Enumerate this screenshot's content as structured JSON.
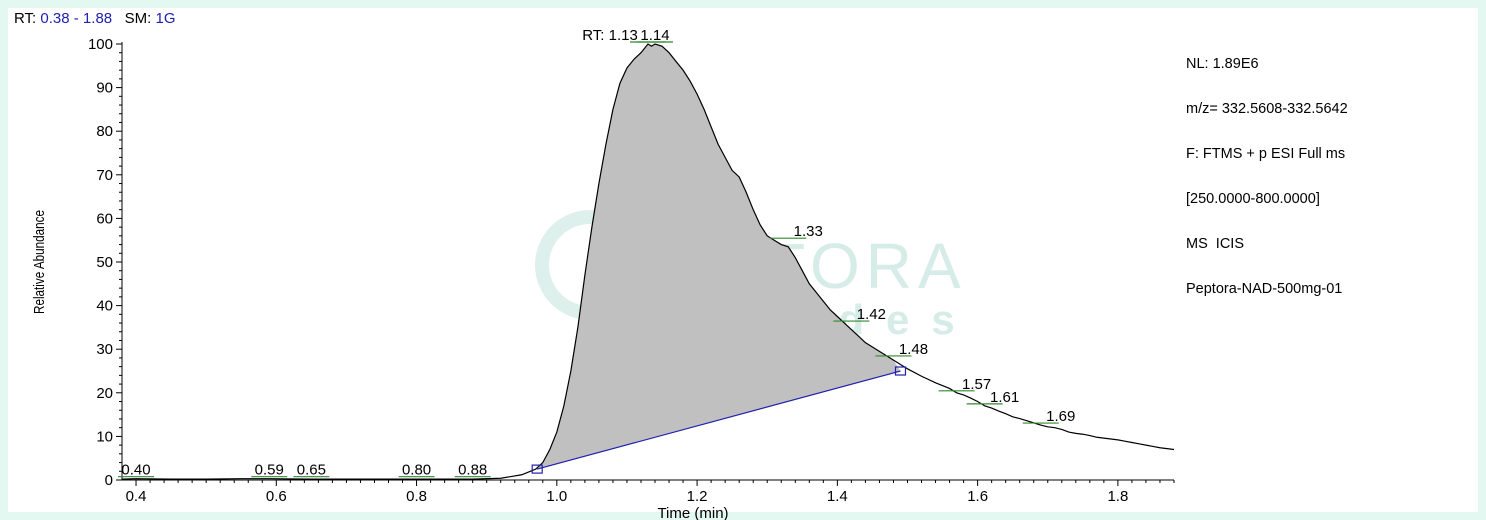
{
  "header": {
    "rt_label": "RT:",
    "rt_range": "0.38 - 1.88",
    "sm_label": "SM:",
    "sm_value": "1G"
  },
  "info_box": {
    "lines": [
      "NL: 1.89E6",
      "m/z= 332.5608-332.5642",
      "F: FTMS + p ESI Full ms",
      "[250.0000-800.0000]",
      "MS  ICIS",
      "Peptora-NAD-500mg-01"
    ]
  },
  "watermark": {
    "brand": "PEPTORA",
    "sub": "peptides"
  },
  "colors": {
    "background": "#e3f8f1",
    "peak_fill": "#c0c0c0",
    "trace": "#000000",
    "baseline": "#1f1fb0",
    "label_tick": "#2e8b2e",
    "watermark": "#d6ece6"
  },
  "chart_data": {
    "type": "area",
    "xlabel": "Time (min)",
    "ylabel": "Relative Abundance",
    "xlim": [
      0.38,
      1.88
    ],
    "ylim": [
      0,
      100
    ],
    "xticks": [
      "0.4",
      "0.6",
      "0.8",
      "1.0",
      "1.2",
      "1.4",
      "1.6",
      "1.8"
    ],
    "yticks": [
      "0",
      "10",
      "20",
      "30",
      "40",
      "50",
      "60",
      "70",
      "80",
      "90",
      "100"
    ],
    "series": [
      {
        "x": [
          0.38,
          0.4,
          0.45,
          0.5,
          0.55,
          0.59,
          0.65,
          0.7,
          0.8,
          0.88,
          0.92,
          0.95,
          0.97,
          0.98,
          0.99,
          1.0,
          1.01,
          1.02,
          1.03,
          1.04,
          1.05,
          1.06,
          1.07,
          1.08,
          1.09,
          1.1,
          1.11,
          1.12,
          1.13,
          1.135,
          1.14,
          1.15,
          1.16,
          1.17,
          1.18,
          1.19,
          1.2,
          1.21,
          1.22,
          1.23,
          1.24,
          1.25,
          1.26,
          1.27,
          1.28,
          1.29,
          1.3,
          1.31,
          1.32,
          1.33,
          1.34,
          1.35,
          1.36,
          1.37,
          1.38,
          1.39,
          1.4,
          1.41,
          1.42,
          1.43,
          1.44,
          1.45,
          1.46,
          1.47,
          1.48,
          1.49,
          1.5,
          1.52,
          1.54,
          1.56,
          1.57,
          1.58,
          1.59,
          1.6,
          1.61,
          1.62,
          1.63,
          1.64,
          1.65,
          1.66,
          1.67,
          1.68,
          1.69,
          1.7,
          1.71,
          1.72,
          1.73,
          1.74,
          1.75,
          1.76,
          1.77,
          1.78,
          1.79,
          1.8,
          1.81,
          1.82,
          1.83,
          1.84,
          1.85,
          1.86,
          1.88
        ],
        "values": [
          0.2,
          0.3,
          0.2,
          0.2,
          0.3,
          0.3,
          0.2,
          0.2,
          0.2,
          0.2,
          0.4,
          1.2,
          2.5,
          4,
          7,
          11,
          17,
          25,
          35,
          47,
          58,
          68,
          77,
          85,
          91,
          94.5,
          96.5,
          98,
          100,
          99.5,
          100,
          99.5,
          98,
          96,
          94,
          91.5,
          88.5,
          85,
          81,
          77,
          74,
          71,
          69.5,
          66,
          62,
          58.5,
          56,
          55,
          54,
          53.5,
          51,
          48,
          45,
          43,
          41,
          39,
          37.5,
          36,
          34.5,
          33,
          31.5,
          30.5,
          29.5,
          28.5,
          27.5,
          26.5,
          25.5,
          23.8,
          22.3,
          21,
          20,
          19.5,
          18.8,
          18,
          17,
          16.5,
          15.8,
          15.2,
          14.5,
          14.1,
          13.6,
          13.1,
          12.6,
          12.2,
          12,
          11.6,
          11,
          10.7,
          10.5,
          10.2,
          9.8,
          9.6,
          9.4,
          9.2,
          8.9,
          8.6,
          8.3,
          8.0,
          7.7,
          7.4,
          7.0
        ]
      }
    ],
    "integration": {
      "start": [
        0.972,
        2.5
      ],
      "end": [
        1.49,
        25
      ]
    },
    "peak_labels": [
      {
        "text": "0.40",
        "x": 0.4,
        "y": 0.3
      },
      {
        "text": "0.59",
        "x": 0.59,
        "y": 0.3
      },
      {
        "text": "0.65",
        "x": 0.65,
        "y": 0.3
      },
      {
        "text": "0.80",
        "x": 0.8,
        "y": 0.3
      },
      {
        "text": "0.88",
        "x": 0.88,
        "y": 0.3
      },
      {
        "text": "RT: 1.13",
        "x": 1.13,
        "y": 100
      },
      {
        "text": "1.14",
        "x": 1.14,
        "y": 100
      },
      {
        "text": "1.33",
        "x": 1.33,
        "y": 55
      },
      {
        "text": "1.42",
        "x": 1.42,
        "y": 36
      },
      {
        "text": "1.48",
        "x": 1.48,
        "y": 28
      },
      {
        "text": "1.57",
        "x": 1.57,
        "y": 20
      },
      {
        "text": "1.61",
        "x": 1.61,
        "y": 17
      },
      {
        "text": "1.69",
        "x": 1.69,
        "y": 12.6
      }
    ]
  }
}
